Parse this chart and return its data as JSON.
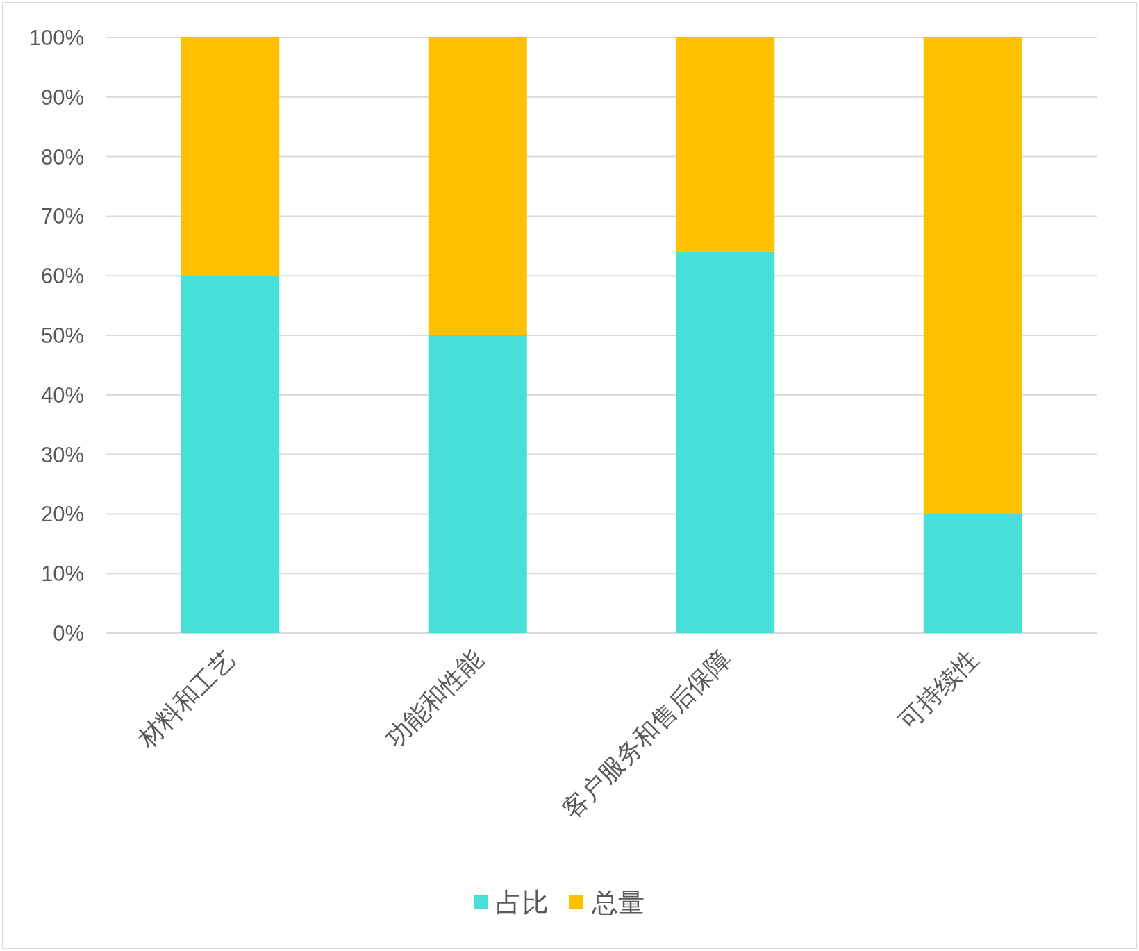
{
  "chart_data": {
    "type": "bar",
    "stacked": true,
    "categories": [
      "材料和工艺",
      "功能和性能",
      "客户服务和售后保障",
      "可持续性"
    ],
    "series": [
      {
        "name": "占比",
        "color": "#48dfd9",
        "values": [
          60,
          50,
          64,
          20
        ]
      },
      {
        "name": "总量",
        "color": "#ffc000",
        "values": [
          40,
          50,
          36,
          80
        ]
      }
    ],
    "ylim": [
      0,
      100
    ],
    "yticks": [
      {
        "value": 0,
        "label": "0%"
      },
      {
        "value": 10,
        "label": "10%"
      },
      {
        "value": 20,
        "label": "20%"
      },
      {
        "value": 30,
        "label": "30%"
      },
      {
        "value": 40,
        "label": "40%"
      },
      {
        "value": 50,
        "label": "50%"
      },
      {
        "value": 60,
        "label": "60%"
      },
      {
        "value": 70,
        "label": "70%"
      },
      {
        "value": 80,
        "label": "80%"
      },
      {
        "value": 90,
        "label": "90%"
      },
      {
        "value": 100,
        "label": "100%"
      }
    ],
    "grid": "y",
    "legend": "bottom"
  }
}
